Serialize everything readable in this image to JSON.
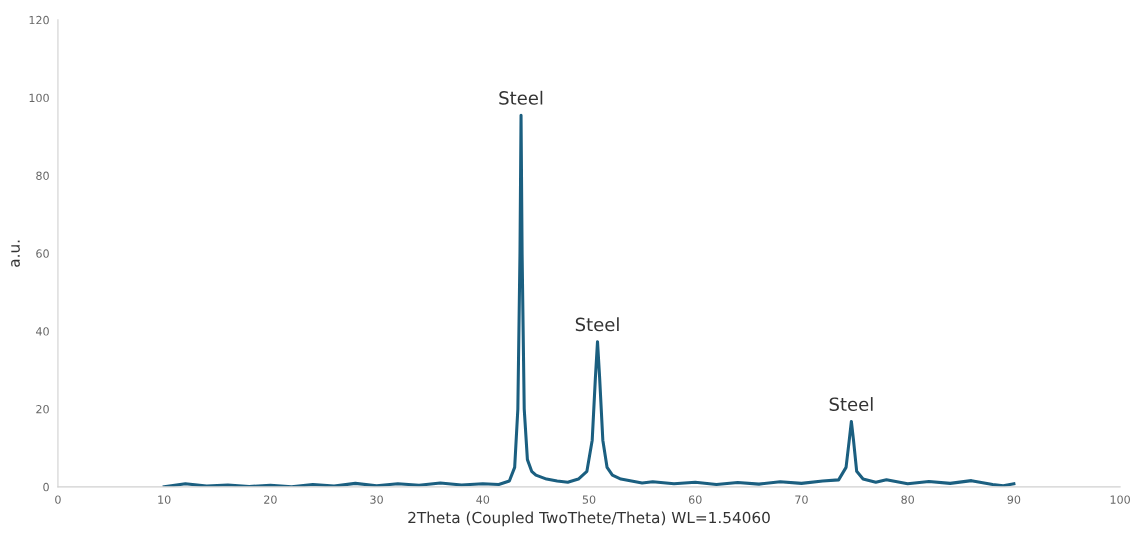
{
  "chart_data": {
    "type": "line",
    "xlabel": "2Theta (Coupled TwoThete/Theta) WL=1.54060",
    "ylabel": "a.u.",
    "series": [
      {
        "color": "#1b5f80",
        "x": [
          10,
          12,
          14,
          16,
          18,
          20,
          22,
          24,
          26,
          28,
          30,
          32,
          34,
          36,
          38,
          40,
          41.5,
          42.5,
          43.0,
          43.3,
          43.5,
          43.6,
          43.7,
          43.9,
          44.2,
          44.6,
          45,
          46,
          47,
          48,
          49,
          49.8,
          50.3,
          50.6,
          50.8,
          51.0,
          51.3,
          51.7,
          52.2,
          53,
          54,
          55,
          56,
          58,
          60,
          62,
          64,
          66,
          68,
          70,
          72,
          73.5,
          74.2,
          74.5,
          74.7,
          74.9,
          75.2,
          75.8,
          77,
          78,
          80,
          82,
          84,
          86,
          88,
          89,
          90
        ],
        "values": [
          0,
          0.8,
          0.2,
          0.5,
          0.1,
          0.4,
          0,
          0.6,
          0.2,
          0.9,
          0.3,
          0.8,
          0.4,
          1.0,
          0.5,
          0.8,
          0.6,
          1.5,
          5,
          20,
          60,
          95.5,
          60,
          20,
          7,
          4,
          3,
          2,
          1.5,
          1.2,
          2,
          4,
          12,
          28,
          37.3,
          28,
          12,
          5,
          3,
          2,
          1.5,
          1,
          1.3,
          0.8,
          1.2,
          0.6,
          1.1,
          0.7,
          1.3,
          0.9,
          1.5,
          1.8,
          5,
          12,
          16.8,
          12,
          4,
          2,
          1.2,
          1.8,
          0.8,
          1.4,
          0.9,
          1.6,
          0.6,
          0.3,
          0.8
        ]
      }
    ],
    "xlim": [
      0,
      100
    ],
    "xticks": [
      0,
      10,
      20,
      30,
      40,
      50,
      60,
      70,
      80,
      90,
      100
    ],
    "ylim": [
      0,
      120
    ],
    "yticks": [
      0,
      20,
      40,
      60,
      80,
      100,
      120
    ],
    "grid": false,
    "marker": "none",
    "line_style": "solid",
    "legend": false,
    "annotations": [
      {
        "text": "Steel",
        "x": 43.6,
        "y": 95.5
      },
      {
        "text": "Steel",
        "x": 50.8,
        "y": 37.3
      },
      {
        "text": "Steel",
        "x": 74.7,
        "y": 16.8
      }
    ]
  }
}
